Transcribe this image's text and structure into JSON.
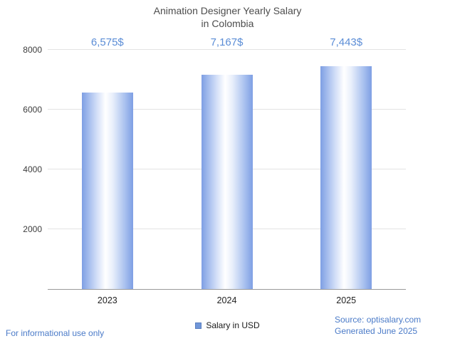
{
  "title": {
    "line1": "Animation Designer Yearly Salary",
    "line2": "in Colombia"
  },
  "chart_data": {
    "type": "bar",
    "title": "Animation Designer Yearly Salary in Colombia",
    "categories": [
      "2023",
      "2024",
      "2025"
    ],
    "values": [
      6575,
      7167,
      7443
    ],
    "value_labels": [
      "6,575$",
      "7,167$",
      "7,443$"
    ],
    "series_name": "Salary in USD",
    "xlabel": "",
    "ylabel": "",
    "ylim": [
      0,
      8000
    ],
    "yticks": [
      2000,
      4000,
      6000,
      8000
    ],
    "grid": true,
    "legend_position": "bottom"
  },
  "legend": {
    "label": "Salary in USD"
  },
  "footer": {
    "left": "For informational use only",
    "source": "Source: optisalary.com",
    "generated": "Generated June 2025"
  },
  "colors": {
    "accent_text": "#4b7bc8",
    "value_label": "#5b8dd6",
    "bar_edge": "#7e9fe4",
    "bar_mid": "#ffffff",
    "legend_square": "#7096d8",
    "grid_line": "#e3e3e3",
    "axis_line": "#9a9a9a",
    "title_text": "#4d4d4d",
    "tick_text": "#3c3c3c"
  }
}
